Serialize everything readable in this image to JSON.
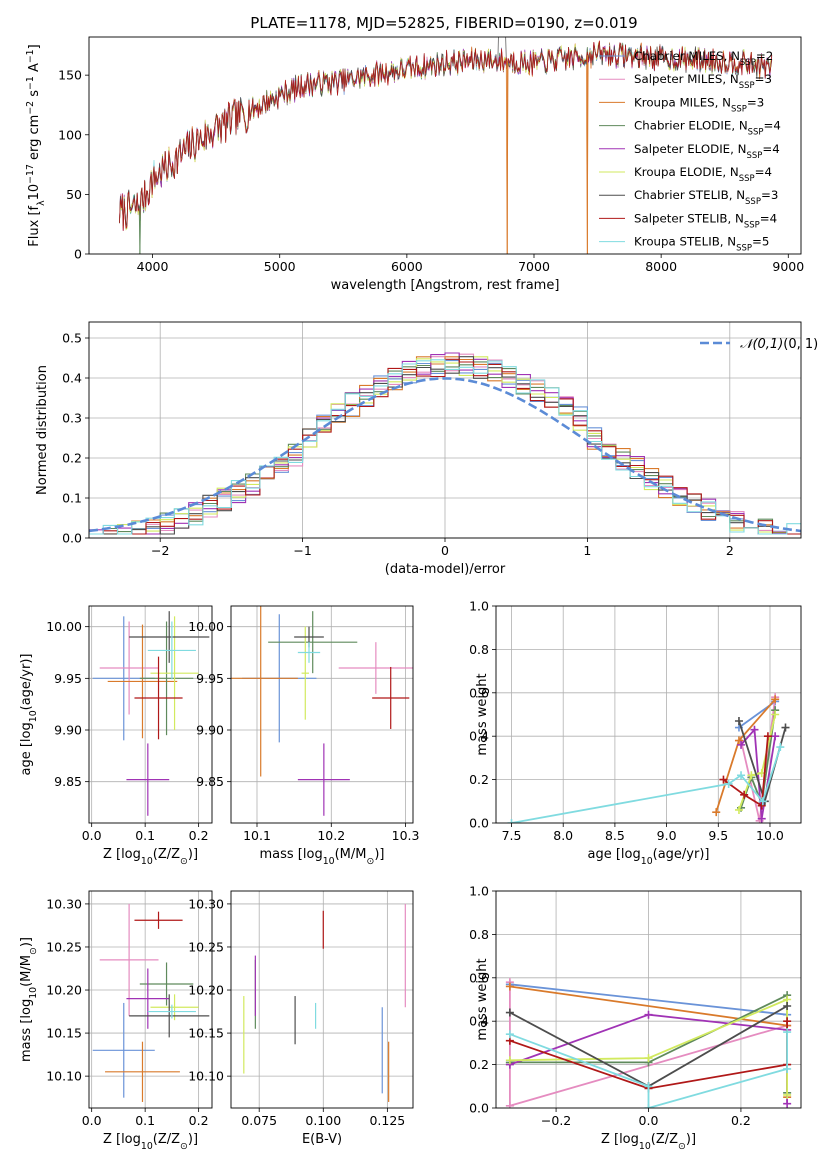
{
  "figure_title": "PLATE=1178, MJD=52825, FIBERID=0190, z=0.019",
  "series_names": [
    "Chabrier MILES, N$_{SSP}$=2",
    "Salpeter MILES, N$_{SSP}$=3",
    "Kroupa MILES, N$_{SSP}$=3",
    "Chabrier ELODIE, N$_{SSP}$=4",
    "Salpeter ELODIE, N$_{SSP}$=4",
    "Kroupa ELODIE, N$_{SSP}$=4",
    "Chabrier STELIB, N$_{SSP}$=3",
    "Salpeter STELIB, N$_{SSP}$=4",
    "Kroupa STELIB, N$_{SSP}$=5"
  ],
  "colors": [
    "#6a93d8",
    "#e58cc0",
    "#d97a2b",
    "#5f8a5c",
    "#a033b5",
    "#d2ea5f",
    "#4d4d4d",
    "#b01818",
    "#80dbe0"
  ],
  "chart_data": [
    {
      "id": "spectrum",
      "type": "line",
      "title": "PLATE=1178, MJD=52825, FIBERID=0190, z=0.019",
      "xlabel": "wavelength [Angstrom, rest frame]",
      "ylabel": "Flux [f$_{\\lambda}$10$^{-17}$ erg cm$^{-2}$ s$^{-1}$ A$^{-1}$]",
      "xlim": [
        3500,
        9100
      ],
      "ylim": [
        0,
        182
      ],
      "xticks": [
        4000,
        5000,
        6000,
        7000,
        8000,
        9000
      ],
      "yticks": [
        0,
        50,
        100,
        150
      ],
      "grid": false,
      "legend": "top-right",
      "x_range": [
        3740,
        8870
      ],
      "continuum": [
        [
          3740,
          35
        ],
        [
          3900,
          40
        ],
        [
          4000,
          62
        ],
        [
          4100,
          72
        ],
        [
          4300,
          90
        ],
        [
          4500,
          105
        ],
        [
          4800,
          122
        ],
        [
          5000,
          133
        ],
        [
          5200,
          142
        ],
        [
          5500,
          145
        ],
        [
          5800,
          152
        ],
        [
          6000,
          155
        ],
        [
          6300,
          160
        ],
        [
          6600,
          163
        ],
        [
          6800,
          162
        ],
        [
          7000,
          160
        ],
        [
          7200,
          163
        ],
        [
          7500,
          168
        ],
        [
          7800,
          166
        ],
        [
          8200,
          163
        ],
        [
          8600,
          161
        ],
        [
          8870,
          156
        ]
      ],
      "series_extras": [
        {
          "name": "Kroupa MILES, N$_{SSP}$=3",
          "dips_to_zero": [
            6790,
            7420
          ]
        },
        {
          "name": "Chabrier ELODIE, N$_{SSP}$=4",
          "dips_to_zero": [
            3900
          ]
        }
      ]
    },
    {
      "id": "residual-histogram",
      "type": "line",
      "subtype": "step-histogram",
      "xlabel": "(data-model)/error",
      "ylabel": "Normed distribution",
      "xlim": [
        -2.5,
        2.5
      ],
      "ylim": [
        0,
        0.54
      ],
      "xticks": [
        -2,
        -1,
        0,
        1,
        2
      ],
      "yticks": [
        0.0,
        0.1,
        0.2,
        0.3,
        0.4,
        0.5
      ],
      "grid": true,
      "legend": "top-right",
      "bin_width": 0.1,
      "reference": {
        "name": "$\\mathcal{N}(0,1)$",
        "color": "#5b8bd6",
        "style": "dashed",
        "mean": 0,
        "sigma": 1
      }
    },
    {
      "id": "age-vs-z",
      "type": "scatter",
      "subtype": "errorbar",
      "xlabel": "Z [log$_{10}$(Z/Z$_{\\odot}$)]",
      "ylabel": "age  [log$_{10}$(age/yr)]",
      "xlim": [
        -0.005,
        0.225
      ],
      "ylim": [
        9.81,
        10.02
      ],
      "xticks": [
        0.0,
        0.1,
        0.2
      ],
      "yticks": [
        9.85,
        9.9,
        9.95,
        10.0
      ],
      "grid": true,
      "points": [
        {
          "x": 0.06,
          "xerr": 0.058,
          "y": 9.95,
          "yerr": 0.06
        },
        {
          "x": 0.07,
          "xerr": 0.055,
          "y": 9.96,
          "yerr": 0.045
        },
        {
          "x": 0.095,
          "xerr": 0.065,
          "y": 9.947,
          "yerr": 0.055
        },
        {
          "x": 0.14,
          "xerr": 0.05,
          "y": 9.95,
          "yerr": 0.055
        },
        {
          "x": 0.105,
          "xerr": 0.04,
          "y": 9.852,
          "yerr": 0.035
        },
        {
          "x": 0.155,
          "xerr": 0.045,
          "y": 9.955,
          "yerr": 0.055
        },
        {
          "x": 0.145,
          "xerr": 0.075,
          "y": 9.99,
          "yerr": 0.025
        },
        {
          "x": 0.125,
          "xerr": 0.045,
          "y": 9.931,
          "yerr": 0.04
        },
        {
          "x": 0.15,
          "xerr": 0.045,
          "y": 9.977,
          "yerr": 0.028
        }
      ]
    },
    {
      "id": "age-vs-mass",
      "type": "scatter",
      "subtype": "errorbar",
      "xlabel": "mass [log$_{10}$(M/M$_{\\odot}$)]",
      "ylabel": "",
      "xlim": [
        10.065,
        10.31
      ],
      "ylim": [
        9.81,
        10.02
      ],
      "xticks": [
        10.1,
        10.2,
        10.3
      ],
      "yticks": [
        9.85,
        9.9,
        9.95,
        10.0
      ],
      "grid": true,
      "points": [
        {
          "x": 10.13,
          "xerr": 0.05,
          "y": 9.95,
          "yerr": 0.062
        },
        {
          "x": 10.26,
          "xerr": 0.05,
          "y": 9.96,
          "yerr": 0.025
        },
        {
          "x": 10.105,
          "xerr": 0.05,
          "y": 9.95,
          "yerr": 0.095
        },
        {
          "x": 10.175,
          "xerr": 0.06,
          "y": 9.985,
          "yerr": 0.03
        },
        {
          "x": 10.19,
          "xerr": 0.035,
          "y": 9.852,
          "yerr": 0.035
        },
        {
          "x": 10.165,
          "xerr": 0.005,
          "y": 9.955,
          "yerr": 0.045
        },
        {
          "x": 10.17,
          "xerr": 0.02,
          "y": 9.99,
          "yerr": 0.01
        },
        {
          "x": 10.28,
          "xerr": 0.025,
          "y": 9.931,
          "yerr": 0.03
        },
        {
          "x": 10.17,
          "xerr": 0.015,
          "y": 9.975,
          "yerr": 0.01
        }
      ]
    },
    {
      "id": "mass-weight-vs-age",
      "type": "line",
      "xlabel": "age  [log$_{10}$(age/yr)]",
      "ylabel": "mass weight",
      "xlim": [
        7.35,
        10.3
      ],
      "ylim": [
        0,
        1.0
      ],
      "xticks": [
        7.5,
        8.0,
        8.5,
        9.0,
        9.5,
        10.0
      ],
      "yticks": [
        0.0,
        0.2,
        0.4,
        0.6,
        0.8,
        1.0
      ],
      "grid": true,
      "series": [
        {
          "name": "Chabrier MILES, N$_{SSP}$=2",
          "x": [
            9.7,
            10.05
          ],
          "y": [
            0.44,
            0.56
          ]
        },
        {
          "name": "Salpeter MILES, N$_{SSP}$=3",
          "x": [
            9.72,
            9.9,
            10.05
          ],
          "y": [
            0.38,
            0.01,
            0.58
          ]
        },
        {
          "name": "Kroupa MILES, N$_{SSP}$=3",
          "x": [
            9.48,
            9.7,
            10.05
          ],
          "y": [
            0.05,
            0.38,
            0.57
          ]
        },
        {
          "name": "Chabrier ELODIE, N$_{SSP}$=4",
          "x": [
            9.72,
            9.82,
            9.92,
            10.05
          ],
          "y": [
            0.07,
            0.21,
            0.09,
            0.52
          ]
        },
        {
          "name": "Salpeter ELODIE, N$_{SSP}$=4",
          "x": [
            9.72,
            9.85,
            9.92,
            10.05
          ],
          "y": [
            0.36,
            0.43,
            0.02,
            0.4
          ]
        },
        {
          "name": "Kroupa ELODIE, N$_{SSP}$=4",
          "x": [
            9.7,
            9.82,
            9.92,
            10.05
          ],
          "y": [
            0.06,
            0.22,
            0.23,
            0.5
          ]
        },
        {
          "name": "Chabrier STELIB, N$_{SSP}$=3",
          "x": [
            9.7,
            9.95,
            10.15
          ],
          "y": [
            0.47,
            0.1,
            0.44
          ]
        },
        {
          "name": "Salpeter STELIB, N$_{SSP}$=4",
          "x": [
            9.55,
            9.75,
            9.92,
            9.98
          ],
          "y": [
            0.2,
            0.13,
            0.08,
            0.4
          ]
        },
        {
          "name": "Kroupa STELIB, N$_{SSP}$=5",
          "x": [
            7.5,
            9.6,
            9.72,
            9.93,
            10.1
          ],
          "y": [
            0.0,
            0.18,
            0.22,
            0.1,
            0.35
          ]
        }
      ]
    },
    {
      "id": "mass-vs-z",
      "type": "scatter",
      "subtype": "errorbar",
      "xlabel": "Z [log$_{10}$(Z/Z$_{\\odot}$)]",
      "ylabel": "mass [log$_{10}$(M/M$_{\\odot}$)]",
      "xlim": [
        -0.005,
        0.225
      ],
      "ylim": [
        10.063,
        10.315
      ],
      "xticks": [
        0.0,
        0.1,
        0.2
      ],
      "yticks": [
        10.1,
        10.15,
        10.2,
        10.25,
        10.3
      ],
      "grid": true,
      "points": [
        {
          "x": 0.06,
          "xerr": 0.058,
          "y": 10.13,
          "yerr": 0.055
        },
        {
          "x": 0.07,
          "xerr": 0.055,
          "y": 10.235,
          "yerr": 0.065
        },
        {
          "x": 0.095,
          "xerr": 0.07,
          "y": 10.105,
          "yerr": 0.035
        },
        {
          "x": 0.14,
          "xerr": 0.05,
          "y": 10.207,
          "yerr": 0.025
        },
        {
          "x": 0.105,
          "xerr": 0.04,
          "y": 10.19,
          "yerr": 0.035
        },
        {
          "x": 0.155,
          "xerr": 0.045,
          "y": 10.18,
          "yerr": 0.015
        },
        {
          "x": 0.145,
          "xerr": 0.075,
          "y": 10.17,
          "yerr": 0.025
        },
        {
          "x": 0.125,
          "xerr": 0.045,
          "y": 10.281,
          "yerr": 0.01
        },
        {
          "x": 0.15,
          "xerr": 0.045,
          "y": 10.175,
          "yerr": 0.008
        }
      ]
    },
    {
      "id": "mass-vs-ebv",
      "type": "scatter",
      "subtype": "errorbar",
      "xlabel": "E(B-V)",
      "ylabel": "",
      "xlim": [
        0.064,
        0.135
      ],
      "ylim": [
        10.063,
        10.315
      ],
      "xticks": [
        0.075,
        0.1,
        0.125
      ],
      "yticks": [
        10.1,
        10.15,
        10.2,
        10.25,
        10.3
      ],
      "grid": true,
      "points": [
        {
          "x": 0.123,
          "y": 10.13,
          "yerr": 0.05
        },
        {
          "x": 0.132,
          "y": 10.24,
          "yerr": 0.06
        },
        {
          "x": 0.1255,
          "y": 10.105,
          "yerr": 0.035
        },
        {
          "x": 0.0735,
          "y": 10.195,
          "yerr": 0.04
        },
        {
          "x": 0.0735,
          "y": 10.205,
          "yerr": 0.035
        },
        {
          "x": 0.069,
          "y": 10.148,
          "yerr": 0.045
        },
        {
          "x": 0.089,
          "y": 10.165,
          "yerr": 0.028
        },
        {
          "x": 0.1,
          "y": 10.27,
          "yerr": 0.022
        },
        {
          "x": 0.097,
          "y": 10.17,
          "yerr": 0.015
        }
      ]
    },
    {
      "id": "mass-weight-vs-z",
      "type": "line",
      "xlabel": "Z [log$_{10}$(Z/Z$_{\\odot}$)]",
      "ylabel": "mass weight",
      "xlim": [
        -0.33,
        0.33
      ],
      "ylim": [
        0,
        1.0
      ],
      "xticks": [
        -0.2,
        0.0,
        0.2
      ],
      "yticks": [
        0.0,
        0.2,
        0.4,
        0.6,
        0.8,
        1.0
      ],
      "grid": true,
      "series": [
        {
          "name": "Chabrier MILES, N$_{SSP}$=2",
          "x": [
            -0.3,
            0.3
          ],
          "y": [
            0.57,
            0.43
          ]
        },
        {
          "name": "Salpeter MILES, N$_{SSP}$=3",
          "x": [
            -0.3,
            -0.3,
            0.3
          ],
          "y": [
            0.58,
            0.01,
            0.38
          ]
        },
        {
          "name": "Kroupa MILES, N$_{SSP}$=3",
          "x": [
            -0.3,
            0.3,
            0.3
          ],
          "y": [
            0.56,
            0.38,
            0.05
          ]
        },
        {
          "name": "Chabrier ELODIE, N$_{SSP}$=4",
          "x": [
            -0.3,
            0.0,
            0.3,
            0.3
          ],
          "y": [
            0.21,
            0.21,
            0.52,
            0.07
          ]
        },
        {
          "name": "Salpeter ELODIE, N$_{SSP}$=4",
          "x": [
            -0.3,
            0.0,
            0.3,
            0.3
          ],
          "y": [
            0.2,
            0.43,
            0.36,
            0.02
          ]
        },
        {
          "name": "Kroupa ELODIE, N$_{SSP}$=4",
          "x": [
            -0.3,
            0.0,
            0.3,
            0.3
          ],
          "y": [
            0.22,
            0.23,
            0.5,
            0.06
          ]
        },
        {
          "name": "Chabrier STELIB, N$_{SSP}$=3",
          "x": [
            -0.3,
            0.0,
            0.3
          ],
          "y": [
            0.44,
            0.1,
            0.47
          ]
        },
        {
          "name": "Salpeter STELIB, N$_{SSP}$=4",
          "x": [
            -0.3,
            0.0,
            0.3,
            0.3
          ],
          "y": [
            0.31,
            0.09,
            0.2,
            0.4
          ]
        },
        {
          "name": "Kroupa STELIB, N$_{SSP}$=5",
          "x": [
            -0.3,
            0.0,
            0.0,
            0.3,
            0.3
          ],
          "y": [
            0.34,
            0.1,
            0.0,
            0.18,
            0.35
          ]
        }
      ]
    }
  ]
}
